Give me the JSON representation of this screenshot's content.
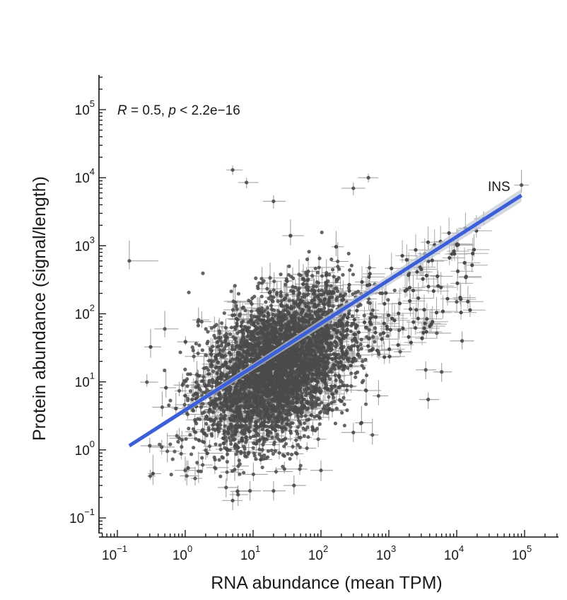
{
  "chart_data": {
    "type": "scatter",
    "title": "",
    "xlabel": "RNA abundance (mean TPM)",
    "ylabel": "Protein abundance (signal/length)",
    "x_scale": "log10",
    "y_scale": "log10",
    "xlim": [
      0.1,
      100000
    ],
    "ylim": [
      0.1,
      100000
    ],
    "x_ticks": [
      {
        "base": "10",
        "exp": "−1",
        "value": 0.1
      },
      {
        "base": "10",
        "exp": "0",
        "value": 1
      },
      {
        "base": "10",
        "exp": "1",
        "value": 10
      },
      {
        "base": "10",
        "exp": "2",
        "value": 100
      },
      {
        "base": "10",
        "exp": "3",
        "value": 1000
      },
      {
        "base": "10",
        "exp": "4",
        "value": 10000
      },
      {
        "base": "10",
        "exp": "5",
        "value": 100000
      }
    ],
    "y_ticks": [
      {
        "base": "10",
        "exp": "−1",
        "value": 0.1
      },
      {
        "base": "10",
        "exp": "0",
        "value": 1
      },
      {
        "base": "10",
        "exp": "1",
        "value": 10
      },
      {
        "base": "10",
        "exp": "2",
        "value": 100
      },
      {
        "base": "10",
        "exp": "3",
        "value": 1000
      },
      {
        "base": "10",
        "exp": "4",
        "value": 10000
      },
      {
        "base": "10",
        "exp": "5",
        "value": 100000
      }
    ],
    "annotation": {
      "r_symbol": "R",
      "r_eq": " = 0.5, ",
      "p_symbol": "p",
      "p_eq": " < 2.2e−16"
    },
    "fit_line": {
      "x": [
        0.15,
        90000
      ],
      "y": [
        1.15,
        5500
      ],
      "color": "#3b5fd9"
    },
    "labeled_points": [
      {
        "label": "INS",
        "x": 90000,
        "y": 7800,
        "xerr": [
          70000,
          115000
        ],
        "yerr": [
          6000,
          13000
        ]
      }
    ],
    "point_color": "#4a4a4a",
    "grid": false,
    "legend": "none",
    "points": [
      {
        "x": 0.15,
        "y": 600,
        "xerr": [
          0.15,
          0.4
        ],
        "yerr": [
          450,
          1200
        ]
      },
      {
        "x": 0.5,
        "y": 60,
        "xerr": [
          0.35,
          0.8
        ],
        "yerr": [
          45,
          110
        ]
      },
      {
        "x": 0.3,
        "y": 1.15,
        "xerr": [
          0.22,
          0.5
        ],
        "yerr": [
          0.9,
          1.5
        ]
      },
      {
        "x": 0.45,
        "y": 1.1,
        "xerr": [
          0.3,
          0.7
        ],
        "yerr": [
          0.85,
          1.4
        ]
      },
      {
        "x": 1.0,
        "y": 0.5,
        "xerr": [
          0.7,
          1.6
        ],
        "yerr": [
          0.35,
          0.8
        ]
      },
      {
        "x": 5,
        "y": 13000,
        "xerr": [
          4,
          7
        ],
        "yerr": [
          11000,
          15000
        ]
      },
      {
        "x": 8,
        "y": 8500,
        "xerr": [
          6,
          12
        ],
        "yerr": [
          7000,
          10000
        ]
      },
      {
        "x": 20,
        "y": 4500,
        "xerr": [
          14,
          30
        ],
        "yerr": [
          3500,
          5500
        ]
      },
      {
        "x": 500,
        "y": 10000,
        "xerr": [
          350,
          700
        ],
        "yerr": [
          8500,
          11500
        ]
      },
      {
        "x": 300,
        "y": 7000,
        "xerr": [
          200,
          450
        ],
        "yerr": [
          5500,
          8500
        ]
      },
      {
        "x": 10000,
        "y": 150,
        "xerr": [
          7000,
          15000
        ],
        "yerr": [
          110,
          200
        ]
      },
      {
        "x": 12000,
        "y": 40,
        "xerr": [
          8000,
          18000
        ],
        "yerr": [
          30,
          55
        ]
      },
      {
        "x": 3500,
        "y": 15,
        "xerr": [
          2500,
          5000
        ],
        "yerr": [
          11,
          20
        ]
      },
      {
        "x": 3800,
        "y": 5.5,
        "xerr": [
          2800,
          5500
        ],
        "yerr": [
          4,
          7
        ]
      },
      {
        "x": 6000,
        "y": 14,
        "xerr": [
          4500,
          8500
        ],
        "yerr": [
          10,
          19
        ]
      },
      {
        "x": 25000,
        "y": 2500,
        "xerr": [
          18000,
          35000
        ],
        "yerr": [
          2000,
          3200
        ]
      },
      {
        "x": 4,
        "y": 0.28,
        "xerr": [
          3,
          6
        ],
        "yerr": [
          0.2,
          0.38
        ]
      },
      {
        "x": 6,
        "y": 0.22,
        "xerr": [
          4.5,
          8.5
        ],
        "yerr": [
          0.15,
          0.3
        ]
      },
      {
        "x": 9,
        "y": 0.25,
        "xerr": [
          6,
          13
        ],
        "yerr": [
          0.18,
          0.35
        ]
      },
      {
        "x": 5,
        "y": 0.18,
        "xerr": [
          3.5,
          7
        ],
        "yerr": [
          0.13,
          0.25
        ]
      },
      {
        "x": 20,
        "y": 0.25,
        "xerr": [
          14,
          30
        ],
        "yerr": [
          0.18,
          0.35
        ]
      },
      {
        "x": 40,
        "y": 0.3,
        "xerr": [
          28,
          60
        ],
        "yerr": [
          0.22,
          0.42
        ]
      },
      {
        "x": 100,
        "y": 0.5,
        "xerr": [
          70,
          150
        ],
        "yerr": [
          0.35,
          0.7
        ]
      },
      {
        "x": 300,
        "y": 1.8,
        "xerr": [
          200,
          450
        ],
        "yerr": [
          1.3,
          2.5
        ]
      },
      {
        "x": 3,
        "y": 2.3,
        "xerr": [
          2,
          4.5
        ],
        "yerr": [
          1.6,
          3.2
        ]
      },
      {
        "x": 800,
        "y": 200,
        "xerr": [
          550,
          1200
        ],
        "yerr": [
          140,
          280
        ]
      }
    ]
  }
}
